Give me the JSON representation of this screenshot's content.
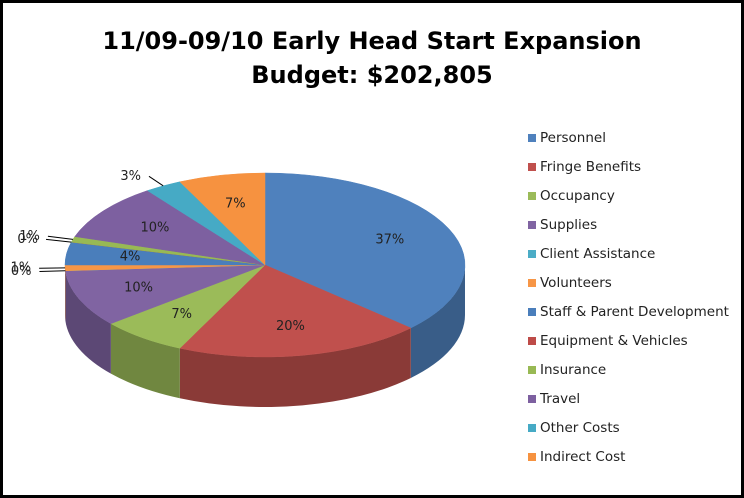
{
  "chart_data": {
    "type": "pie3d",
    "title": "11/09-09/10 Early Head Start Expansion",
    "subtitle": "Budget: $202,805",
    "categories": [
      "Personnel",
      "Fringe Benefits",
      "Occupancy",
      "Supplies",
      "Client Assistance",
      "Volunteers",
      "Staff & Parent Development",
      "Equipment & Vehicles",
      "Insurance",
      "Travel",
      "Other Costs",
      "Indirect Cost"
    ],
    "values": [
      37,
      20,
      7,
      10,
      0,
      1,
      4,
      0,
      1,
      10,
      3,
      7
    ],
    "value_labels": [
      "37%",
      "20%",
      "7%",
      "10%",
      "0%",
      "1%",
      "4%",
      "0%",
      "1%",
      "10%",
      "3%",
      "7%"
    ],
    "colors": [
      "#4f81bd",
      "#c0504d",
      "#9bbb59",
      "#8064a2",
      "#4bacc6",
      "#f79646",
      "#4a7ebb",
      "#be4b48",
      "#98b954",
      "#7d60a0",
      "#46aac5",
      "#f69240"
    ],
    "legend": "right"
  }
}
